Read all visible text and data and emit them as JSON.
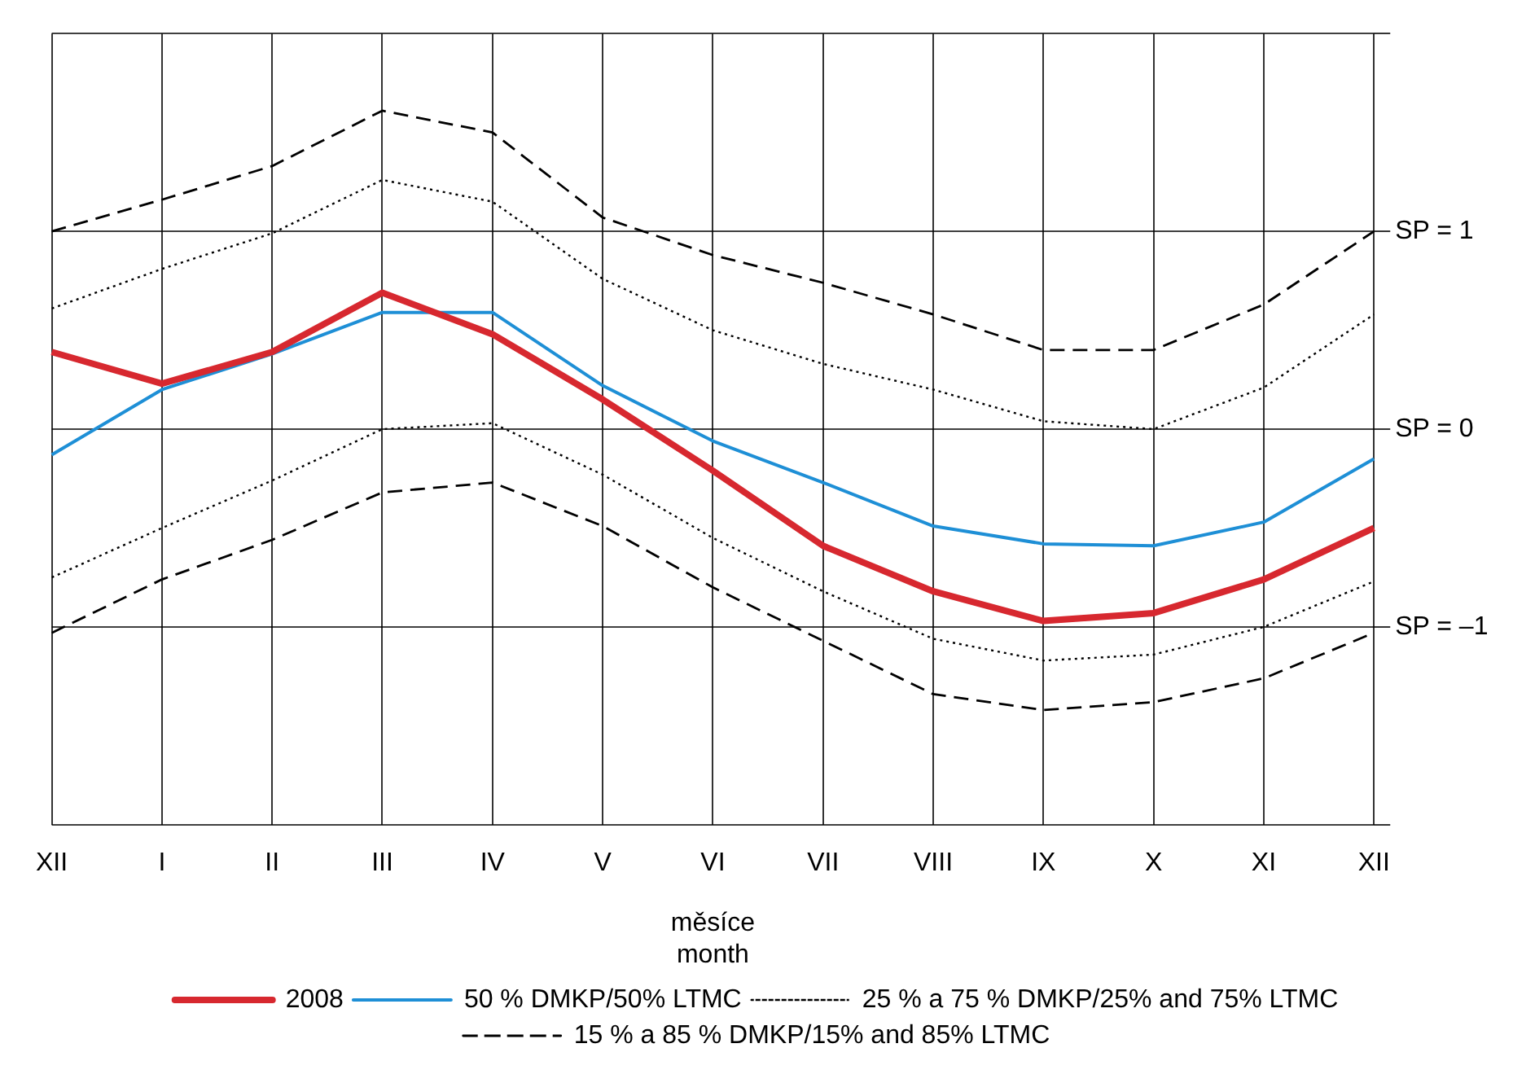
{
  "chart_data": {
    "type": "line",
    "xlabel": "měsíce\nmonth",
    "categories": [
      "XII",
      "I",
      "II",
      "III",
      "IV",
      "V",
      "VI",
      "VII",
      "VIII",
      "IX",
      "X",
      "XI",
      "XII"
    ],
    "ylim": [
      -2,
      2
    ],
    "yticks": [
      {
        "value": -2,
        "label": null
      },
      {
        "value": -1,
        "label": "SP = –1"
      },
      {
        "value": 0,
        "label": "SP = 0"
      },
      {
        "value": 1,
        "label": "SP = 1"
      },
      {
        "value": 2,
        "label": null
      }
    ],
    "grid": true,
    "legend": "bottom",
    "marker": "none",
    "series": [
      {
        "name": "2008",
        "color": "#d7282f",
        "line_style": "solid",
        "values": [
          0.39,
          0.23,
          0.39,
          0.69,
          0.48,
          0.15,
          -0.21,
          -0.59,
          -0.82,
          -0.97,
          -0.93,
          -0.76,
          -0.5
        ]
      },
      {
        "name": "50 % DMKP/50% LTMC",
        "color": "#1e8fd6",
        "line_style": "solid",
        "values": [
          -0.13,
          0.2,
          0.38,
          0.59,
          0.59,
          0.22,
          -0.06,
          -0.27,
          -0.49,
          -0.58,
          -0.59,
          -0.47,
          -0.15
        ]
      },
      {
        "name": "25 % a 75 % DMKP/25% and 75% LTMC",
        "color": "#000000",
        "line_style": "dotted",
        "values": [
          0.61,
          0.81,
          0.99,
          1.26,
          1.15,
          0.76,
          0.5,
          0.33,
          0.2,
          0.04,
          0,
          0.21,
          0.58
        ]
      },
      {
        "color": "#000000",
        "line_style": "dotted",
        "values": [
          -0.75,
          -0.5,
          -0.26,
          0,
          0.03,
          -0.23,
          -0.55,
          -0.82,
          -1.06,
          -1.17,
          -1.14,
          -1,
          -0.77
        ]
      },
      {
        "name": "15 % a 85 % DMKP/15% and 85% LTMC",
        "color": "#000000",
        "line_style": "dashed",
        "values": [
          1,
          1.16,
          1.33,
          1.61,
          1.5,
          1.07,
          0.88,
          0.74,
          0.58,
          0.4,
          0.4,
          0.63,
          1
        ]
      },
      {
        "color": "#000000",
        "line_style": "dashed",
        "values": [
          -1.03,
          -0.76,
          -0.56,
          -0.32,
          -0.27,
          -0.49,
          -0.8,
          -1.07,
          -1.34,
          -1.42,
          -1.38,
          -1.26,
          -1.03
        ]
      }
    ]
  }
}
